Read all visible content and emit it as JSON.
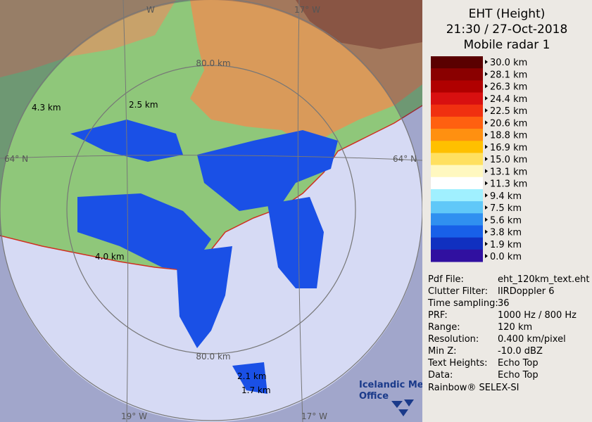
{
  "header": {
    "title": "EHT (Height)",
    "time": "21:30 / 27-Oct-2018",
    "radar": "Mobile radar 1"
  },
  "legend": {
    "labels": [
      "30.0 km",
      "28.1 km",
      "26.3 km",
      "24.4 km",
      "22.5 km",
      "20.6 km",
      "18.8 km",
      "16.9 km",
      "15.0 km",
      "13.1 km",
      "11.3 km",
      "9.4 km",
      "7.5 km",
      "5.6 km",
      "3.8 km",
      "1.9 km",
      "0.0 km"
    ],
    "colors": [
      "#5a0000",
      "#8a0000",
      "#b00000",
      "#d81010",
      "#f03010",
      "#ff6010",
      "#ff9010",
      "#ffc000",
      "#ffe060",
      "#fff8c0",
      "#ffffff",
      "#a0f0ff",
      "#60c8f8",
      "#3090f0",
      "#1860e8",
      "#1030c0",
      "#3010a0"
    ]
  },
  "info": {
    "rows": [
      [
        "Pdf File:",
        "eht_120km_text.eht"
      ],
      [
        "Clutter Filter:",
        "IIRDoppler 6"
      ],
      [
        "Time sampling:",
        "36"
      ],
      [
        "PRF:",
        "1000 Hz / 800 Hz"
      ],
      [
        "Range:",
        "120 km"
      ],
      [
        "Resolution:",
        "0.400 km/pixel"
      ],
      [
        "Min Z:",
        "-10.0 dBZ"
      ],
      [
        "Text Heights:",
        "Echo Top"
      ],
      [
        "Data:",
        "Echo Top"
      ]
    ],
    "footer": "Rainbow® SELEX-SI"
  },
  "map": {
    "ring_top": "80.0 km",
    "ring_bottom": "80.0 km",
    "lat_left": "64° N",
    "lat_right": "64° N",
    "lon_top_left": "W",
    "lon_top_right": "17° W",
    "lon_bottom_left": "19° W",
    "lon_bottom_right": "17° W",
    "heights": [
      "4.3 km",
      "2.5 km",
      "4.0 km",
      "2.1 km",
      "1.7 km"
    ],
    "logo": [
      "Icelandic Met",
      "Office"
    ]
  }
}
